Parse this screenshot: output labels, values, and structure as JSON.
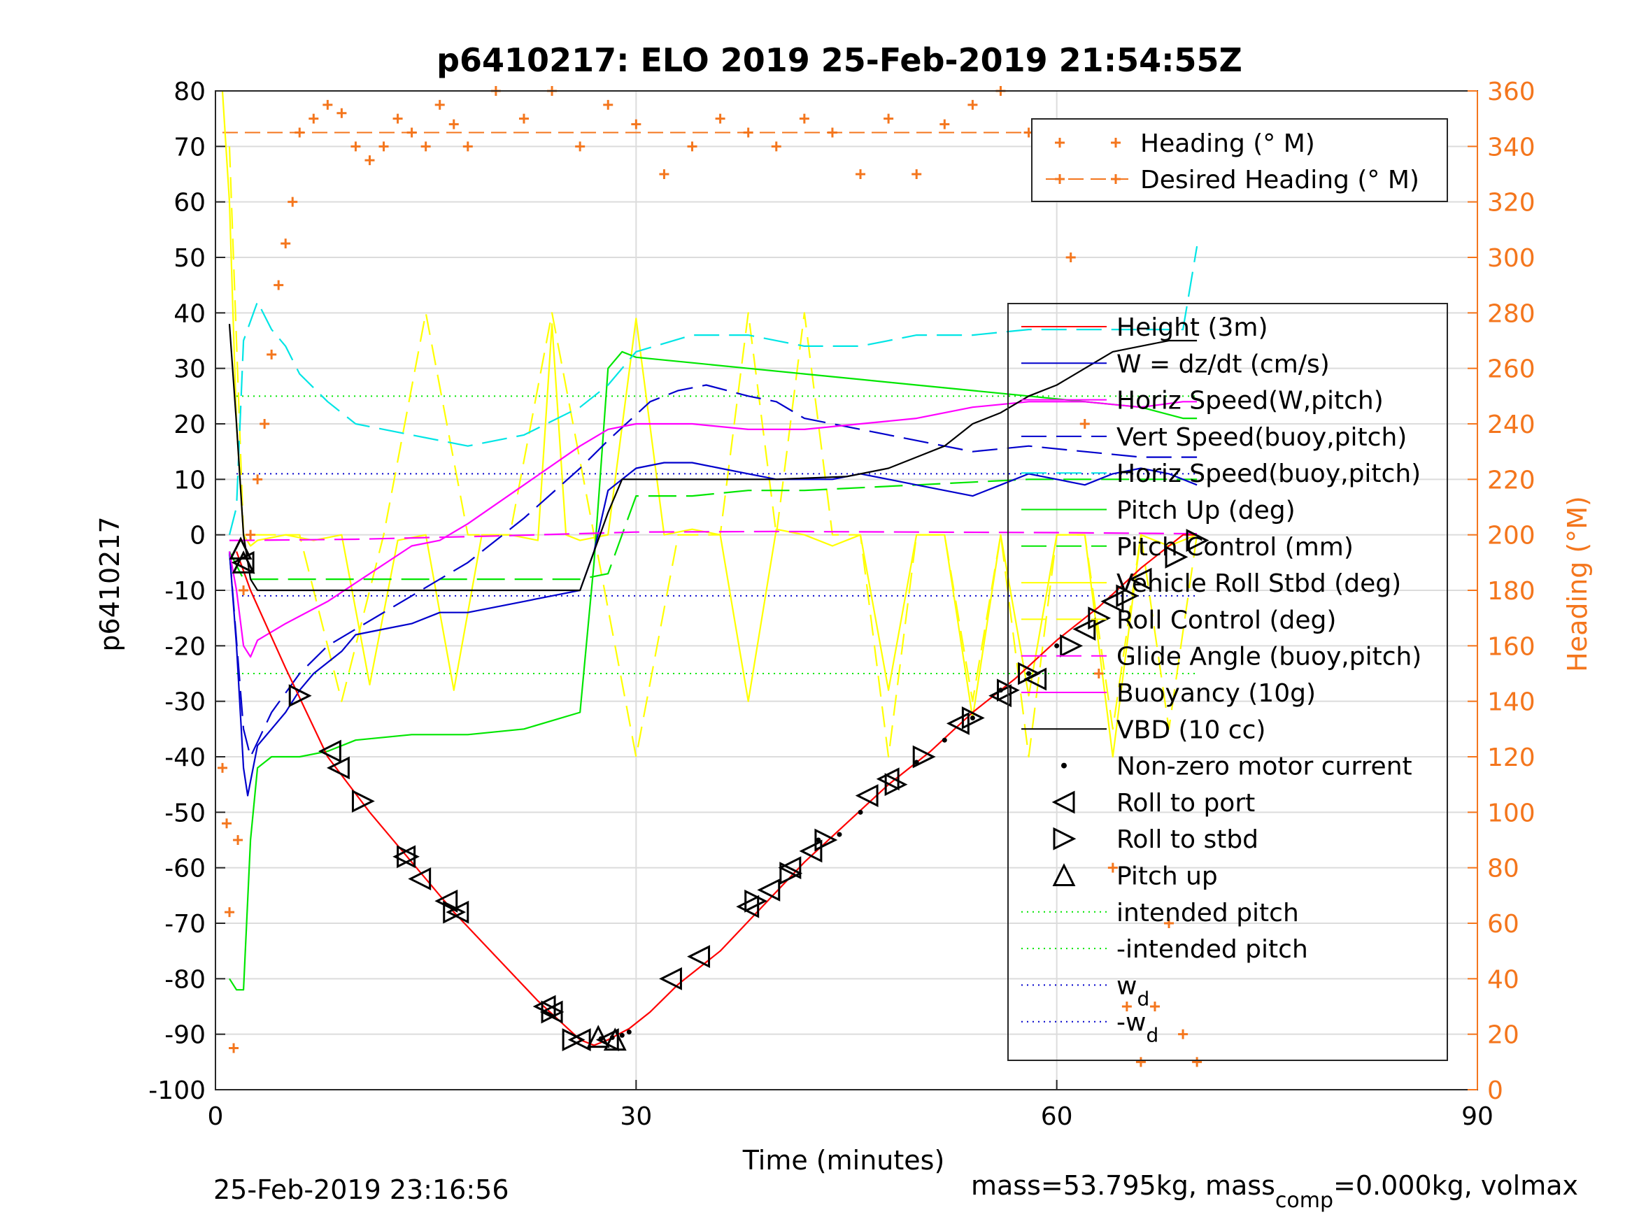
{
  "chart_data": {
    "type": "line",
    "title": "p6410217: ELO 2019 25-Feb-2019 21:54:55Z",
    "xlabel": "Time (minutes)",
    "ylabel": "p6410217",
    "y2label": "Heading (°M)",
    "xlim": [
      0,
      90
    ],
    "ylim": [
      -100,
      80
    ],
    "y2lim": [
      0,
      360
    ],
    "xticks": [
      0,
      30,
      60,
      90
    ],
    "yticks": [
      80,
      70,
      60,
      50,
      40,
      30,
      20,
      10,
      0,
      -10,
      -20,
      -30,
      -40,
      -50,
      -60,
      -70,
      -80,
      -90,
      -100
    ],
    "y2ticks": [
      360,
      340,
      320,
      300,
      280,
      260,
      240,
      220,
      200,
      180,
      160,
      140,
      120,
      100,
      80,
      60,
      40,
      20,
      0
    ],
    "grid": true,
    "footer_left": "25-Feb-2019 23:16:56",
    "footer_right": {
      "a": "mass=53.795kg, mass",
      "sub": "comp",
      "b": "=0.000kg, volmax"
    },
    "colors": {
      "heading": "#f4761d",
      "height": "#ff0000",
      "w": "#0000cc",
      "horiz": "#ff00ff",
      "vert_buoy": "#0000cc",
      "horiz_buoy": "#00e5e5",
      "pitch": "#00e600",
      "roll": "#ffff00",
      "buoyancy": "#ff00ff",
      "vbd": "#000000"
    },
    "heading_legend": [
      "Heading (° M)",
      "Desired Heading (° M)"
    ],
    "legend": [
      {
        "label": "Height (3m)",
        "style": "solid",
        "color": "#ff0000"
      },
      {
        "label": "W = dz/dt (cm/s)",
        "style": "solid",
        "color": "#0000cc"
      },
      {
        "label": "Horiz Speed(W,pitch)",
        "style": "solid",
        "color": "#ff00ff"
      },
      {
        "label": "Vert Speed(buoy,pitch)",
        "style": "dash",
        "color": "#0000cc"
      },
      {
        "label": "Horiz Speed(buoy,pitch)",
        "style": "dash",
        "color": "#00e5e5"
      },
      {
        "label": "Pitch Up (deg)",
        "style": "solid",
        "color": "#00e600"
      },
      {
        "label": "Pitch Control (mm)",
        "style": "dash",
        "color": "#00e600"
      },
      {
        "label": "Vehicle Roll Stbd (deg)",
        "style": "solid",
        "color": "#ffff00"
      },
      {
        "label": "Roll Control (deg)",
        "style": "dash",
        "color": "#ffff00"
      },
      {
        "label": "Glide Angle (buoy,pitch)",
        "style": "dash",
        "color": "#ff00ff"
      },
      {
        "label": "Buoyancy (10g)",
        "style": "solid",
        "color": "#ff00ff"
      },
      {
        "label": "VBD (10 cc)",
        "style": "solid",
        "color": "#000000"
      },
      {
        "label": "Non-zero motor current",
        "style": "dot",
        "color": "#000000"
      },
      {
        "label": "Roll to port",
        "style": "tri-left",
        "color": "#000000"
      },
      {
        "label": "Roll to stbd",
        "style": "tri-right",
        "color": "#000000"
      },
      {
        "label": "Pitch up",
        "style": "tri-up",
        "color": "#000000"
      },
      {
        "label": "intended pitch",
        "style": "dotted",
        "color": "#00e600"
      },
      {
        "label": "-intended pitch",
        "style": "dotted",
        "color": "#00e600"
      },
      {
        "label": "w",
        "sub": "d",
        "style": "dotted",
        "color": "#0000cc"
      },
      {
        "label": "-w",
        "sub": "d",
        "style": "dotted",
        "color": "#0000cc"
      }
    ],
    "reference_lines": {
      "intended_pitch": 25,
      "neg_intended_pitch": -25,
      "w_d": 11,
      "neg_w_d": -11,
      "desired_heading": 345
    },
    "series": {
      "height": {
        "x": [
          1.5,
          2.5,
          5,
          8,
          11,
          14,
          17,
          20,
          23,
          26,
          27,
          28,
          29.5,
          31,
          33,
          36,
          39,
          42,
          45,
          48,
          51,
          54,
          57,
          60,
          63,
          66,
          69,
          70
        ],
        "y": [
          -3,
          -10,
          -24,
          -40,
          -50,
          -59,
          -68,
          -76,
          -84,
          -91,
          -92,
          -91,
          -89,
          -86,
          -81,
          -75,
          -67,
          -59,
          -52,
          -45,
          -39,
          -32,
          -26,
          -19,
          -13,
          -6,
          0,
          0
        ]
      },
      "w": {
        "x": [
          1,
          1.5,
          2,
          2.3,
          3,
          4,
          5,
          6,
          7,
          8,
          9,
          10,
          12,
          14,
          16,
          18,
          20,
          22,
          24,
          26,
          27,
          28,
          30,
          32,
          34,
          36,
          38,
          40,
          42,
          44,
          46,
          48,
          50,
          52,
          54,
          56,
          58,
          60,
          62,
          64,
          66,
          68,
          70
        ],
        "y": [
          -3,
          -20,
          -42,
          -47,
          -38,
          -35,
          -32,
          -28,
          -25,
          -23,
          -21,
          -18,
          -17,
          -16,
          -14,
          -14,
          -13,
          -12,
          -11,
          -10,
          -3,
          8,
          12,
          13,
          13,
          12,
          11,
          10,
          10,
          10,
          11,
          10,
          9,
          8,
          7,
          9,
          11,
          10,
          9,
          11,
          12,
          11,
          9
        ]
      },
      "horiz_w": {
        "x": [
          1,
          1.5,
          2,
          2.5,
          3,
          5,
          8,
          11,
          14,
          16,
          18,
          22,
          26,
          28,
          30,
          34,
          38,
          42,
          46,
          50,
          54,
          58,
          62,
          66,
          69,
          70
        ],
        "y": [
          -3,
          -10,
          -20,
          -22,
          -19,
          -16,
          -12,
          -7,
          -2,
          -1,
          2,
          9,
          16,
          19,
          20,
          20,
          19,
          19,
          20,
          21,
          23,
          24,
          24,
          23,
          24,
          24
        ]
      },
      "vert_buoy": {
        "x": [
          1,
          2,
          2.5,
          4,
          6,
          8,
          10,
          14,
          18,
          22,
          26,
          28,
          31,
          33,
          35,
          38,
          40,
          42,
          46,
          50,
          54,
          58,
          62,
          66,
          70
        ],
        "y": [
          -3,
          -35,
          -40,
          -32,
          -25,
          -20,
          -17,
          -11,
          -5,
          3,
          12,
          17,
          24,
          26,
          27,
          25,
          24,
          21,
          19,
          17,
          15,
          16,
          15,
          14,
          14
        ]
      },
      "horiz_buoy": {
        "x": [
          1,
          1.5,
          2,
          3,
          4,
          5,
          6,
          8,
          10,
          14,
          18,
          22,
          26,
          28,
          30,
          34,
          38,
          42,
          46,
          50,
          54,
          58,
          62,
          66,
          69,
          70
        ],
        "y": [
          0,
          5,
          35,
          42,
          37,
          34,
          29,
          24,
          20,
          18,
          16,
          18,
          23,
          27,
          33,
          36,
          36,
          34,
          34,
          36,
          36,
          37,
          37,
          37,
          37,
          52
        ]
      },
      "pitch": {
        "x": [
          1,
          1.5,
          2,
          2.5,
          3,
          4,
          6,
          8,
          10,
          14,
          18,
          22,
          26,
          27,
          28,
          29,
          30,
          34,
          38,
          42,
          46,
          50,
          54,
          58,
          62,
          66,
          69,
          70
        ],
        "y": [
          -80,
          -82,
          -82,
          -55,
          -42,
          -40,
          -40,
          -39,
          -37,
          -36,
          -36,
          -35,
          -32,
          -5,
          30,
          33,
          32,
          31,
          30,
          29,
          28,
          27,
          26,
          25,
          24,
          23,
          21,
          21
        ]
      },
      "pitch_ctrl": {
        "x": [
          1,
          2,
          3,
          26,
          28,
          30,
          34,
          38,
          42,
          50,
          58,
          62,
          66,
          70
        ],
        "y": [
          -3,
          -8,
          -8,
          -8,
          -7,
          7,
          7,
          8,
          8,
          9,
          10,
          10,
          10,
          10
        ]
      },
      "roll": {
        "x": [
          0.5,
          1,
          1.5,
          2,
          2.5,
          3,
          5,
          7,
          9,
          11,
          13,
          15,
          17,
          19,
          21,
          23,
          24,
          25,
          26,
          28,
          30,
          32,
          34,
          36,
          38,
          40,
          42,
          44,
          46,
          48,
          50,
          52,
          54,
          56,
          58,
          60,
          62,
          64,
          66,
          68,
          70
        ],
        "y": [
          80,
          60,
          20,
          0,
          -2,
          -1,
          0,
          -1,
          0,
          -27,
          -1,
          0,
          -28,
          0,
          0,
          -1,
          38,
          0,
          -1,
          0,
          39,
          0,
          1,
          0,
          -30,
          1,
          0,
          -2,
          0,
          -28,
          0,
          0,
          -33,
          0,
          -29,
          0,
          0,
          -40,
          0,
          -2,
          0
        ]
      },
      "roll_ctrl": {
        "x": [
          1,
          2,
          6,
          9,
          12,
          15,
          18,
          21,
          24,
          27,
          30,
          33,
          36,
          38,
          40,
          42,
          44,
          46,
          48,
          50,
          52,
          54,
          56,
          58,
          60,
          62,
          64,
          66,
          68,
          70
        ],
        "y": [
          70,
          0,
          0,
          -30,
          0,
          40,
          0,
          0,
          40,
          0,
          -40,
          0,
          0,
          40,
          0,
          40,
          0,
          0,
          -40,
          0,
          0,
          -30,
          0,
          -40,
          0,
          0,
          -35,
          0,
          -35,
          0
        ]
      },
      "glide": {
        "x": [
          1,
          2,
          10,
          20,
          30,
          40,
          50,
          60,
          65,
          70
        ],
        "y": [
          -1,
          -1,
          -0.8,
          -0.2,
          0.5,
          0.6,
          0.5,
          0.4,
          0.3,
          0.2
        ]
      },
      "vbd": {
        "x": [
          1,
          1.5,
          2,
          2.5,
          3,
          26,
          27,
          28,
          29,
          30,
          38,
          40,
          45,
          48,
          50,
          52,
          54,
          56,
          58,
          60,
          62,
          64,
          66,
          68,
          70
        ],
        "y": [
          38,
          20,
          0,
          -8,
          -10,
          -10,
          -3,
          4,
          10,
          10,
          10,
          10,
          10.5,
          12,
          14,
          16,
          20,
          22,
          25,
          27,
          30,
          33,
          34,
          35,
          35
        ]
      },
      "heading": {
        "x": [
          0.5,
          0.8,
          1,
          1.3,
          1.6,
          2,
          2.5,
          3,
          3.5,
          4,
          4.5,
          5,
          5.5,
          6,
          7,
          8,
          9,
          10,
          11,
          12,
          13,
          14,
          15,
          16,
          17,
          18,
          20,
          22,
          24,
          26,
          28,
          30,
          32,
          34,
          36,
          38,
          40,
          42,
          44,
          46,
          48,
          50,
          52,
          54,
          56,
          58,
          60,
          61,
          62,
          63,
          64,
          65,
          66,
          67,
          68,
          69,
          70
        ],
        "y": [
          116,
          96,
          64,
          15,
          90,
          180,
          200,
          220,
          240,
          265,
          290,
          305,
          320,
          345,
          350,
          355,
          352,
          340,
          335,
          340,
          350,
          345,
          340,
          355,
          348,
          340,
          360,
          350,
          360,
          340,
          355,
          348,
          330,
          340,
          350,
          345,
          340,
          350,
          345,
          330,
          350,
          330,
          348,
          355,
          360,
          345,
          330,
          300,
          240,
          150,
          80,
          30,
          10,
          30,
          60,
          20,
          10
        ]
      },
      "desired_heading": {
        "x": [
          0.5,
          70
        ],
        "y": [
          345,
          345
        ]
      }
    },
    "motor_current_points": {
      "x": [
        27.5,
        28.3,
        29,
        29.5,
        43,
        44.5,
        46,
        50,
        52,
        54,
        56,
        58,
        60
      ],
      "y": [
        -90.8,
        -90.6,
        -90.2,
        -89.6,
        -55,
        -54,
        -50,
        -41,
        -37,
        -33,
        -28,
        -25,
        -20
      ]
    },
    "roll_port_points": {
      "x": [
        2,
        8.2,
        8.8,
        13.5,
        14.6,
        16.5,
        17.3,
        23.5,
        24,
        26,
        28,
        32.5,
        34.5,
        38,
        39.5,
        41,
        42.5,
        46.5,
        48,
        53,
        56,
        58.5,
        62,
        64,
        66
      ],
      "y": [
        -5,
        -39,
        -42,
        -58,
        -62,
        -66,
        -68,
        -85,
        -86,
        -91,
        -91,
        -80,
        -76,
        -67,
        -64,
        -60,
        -57,
        -47,
        -44,
        -34,
        -29,
        -26,
        -17,
        -12,
        -8
      ]
    },
    "roll_stbd_points": {
      "x": [
        6,
        10.5,
        13.7,
        17,
        24,
        25.5,
        38.5,
        41,
        43.5,
        48.5,
        50.5,
        54,
        56.5,
        58,
        61,
        63,
        65,
        68.5,
        70
      ],
      "y": [
        -29,
        -48,
        -58,
        -68,
        -86,
        -91,
        -66,
        -61,
        -55,
        -45,
        -40,
        -33,
        -28,
        -25,
        -20,
        -15,
        -11,
        -4,
        -1
      ]
    },
    "pitch_up_points": {
      "x": [
        1.8,
        2,
        27.3,
        28.5
      ],
      "y": [
        -2.5,
        -5,
        -90.5,
        -91
      ]
    }
  }
}
